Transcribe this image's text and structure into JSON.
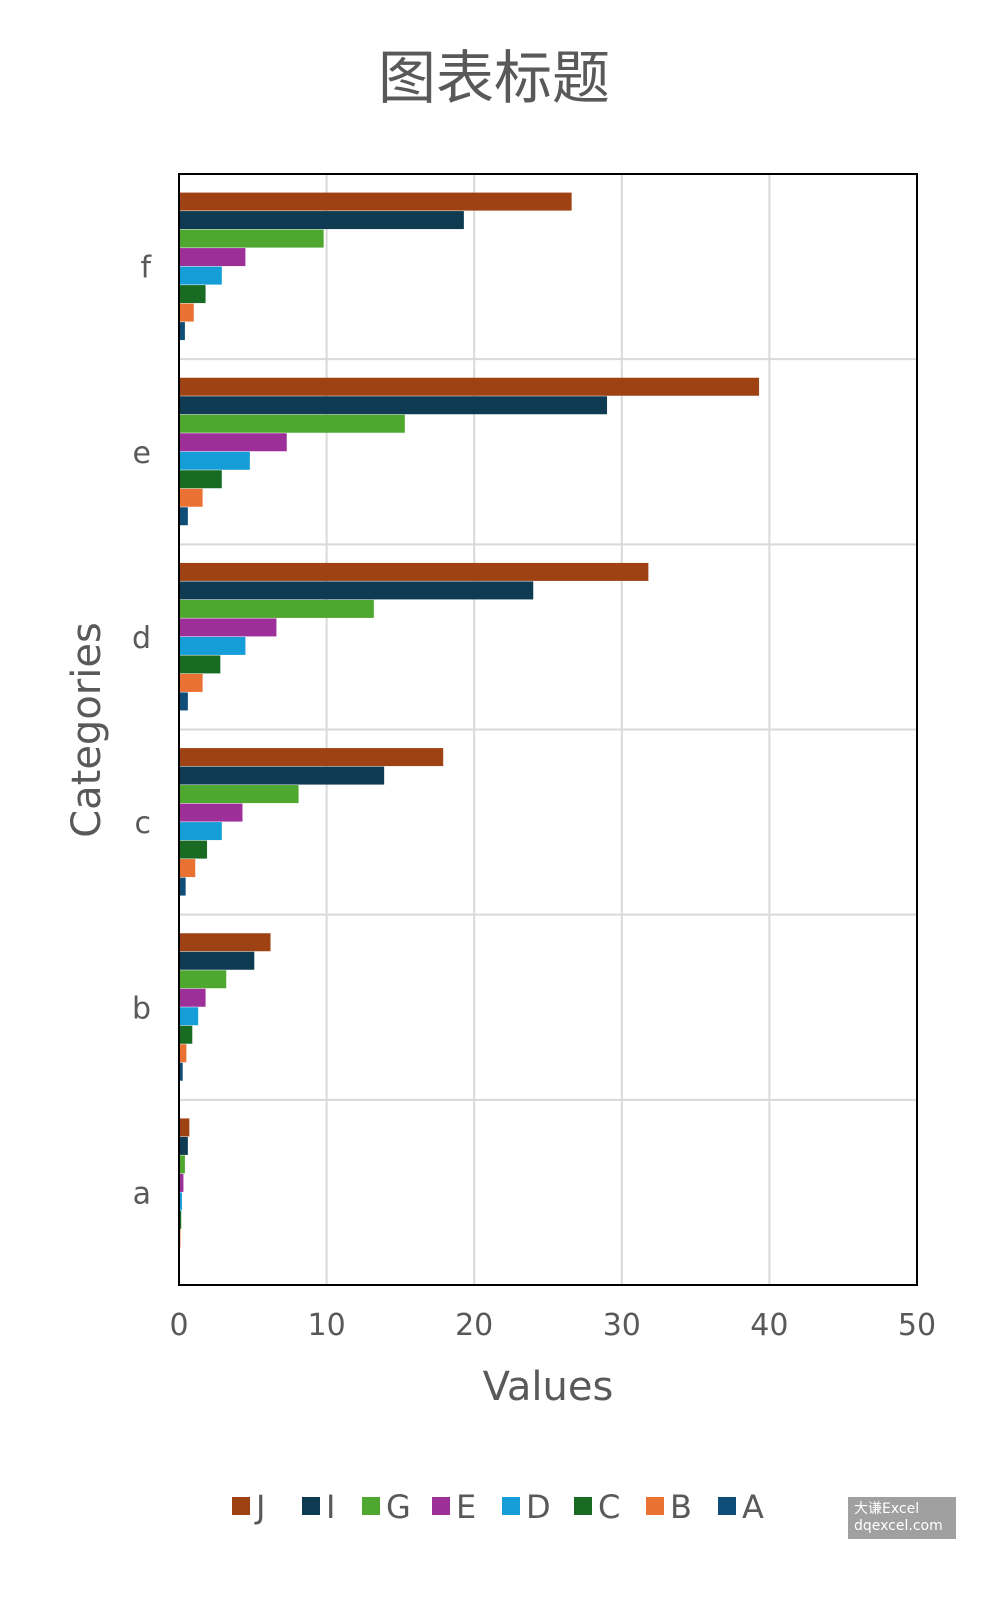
{
  "chart_data": {
    "type": "bar",
    "orientation": "horizontal",
    "title": "图表标题",
    "xlabel": "Values",
    "ylabel": "Categories",
    "categories": [
      "a",
      "b",
      "c",
      "d",
      "e",
      "f"
    ],
    "xlim": [
      0,
      50
    ],
    "xticks": [
      0,
      10,
      20,
      30,
      40,
      50
    ],
    "grid": true,
    "legend_position": "bottom",
    "series": [
      {
        "name": "J",
        "color": "#9e4113",
        "values": [
          0.7,
          6.2,
          17.9,
          31.8,
          39.3,
          26.6
        ]
      },
      {
        "name": "I",
        "color": "#0e3a52",
        "values": [
          0.6,
          5.1,
          13.9,
          24.0,
          29.0,
          19.3
        ]
      },
      {
        "name": "G",
        "color": "#4ea72e",
        "values": [
          0.4,
          3.2,
          8.1,
          13.2,
          15.3,
          9.8
        ]
      },
      {
        "name": "E",
        "color": "#9d2f99",
        "values": [
          0.3,
          1.8,
          4.3,
          6.6,
          7.3,
          4.5
        ]
      },
      {
        "name": "D",
        "color": "#159dd8",
        "values": [
          0.2,
          1.3,
          2.9,
          4.5,
          4.8,
          2.9
        ]
      },
      {
        "name": "C",
        "color": "#196b24",
        "values": [
          0.15,
          0.9,
          1.9,
          2.8,
          2.9,
          1.8
        ]
      },
      {
        "name": "B",
        "color": "#e97132",
        "values": [
          0.1,
          0.5,
          1.1,
          1.6,
          1.6,
          1.0
        ]
      },
      {
        "name": "A",
        "color": "#0f4d79",
        "values": [
          0.05,
          0.25,
          0.45,
          0.6,
          0.6,
          0.4
        ]
      }
    ]
  },
  "watermark": {
    "line1": "大谦Excel",
    "line2": "dqexcel.com"
  }
}
